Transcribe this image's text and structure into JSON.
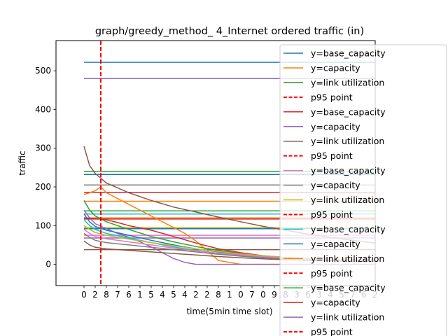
{
  "chart_data": {
    "type": "line",
    "title": "graph/greedy_method_ 4_Internet ordered traffic (in)",
    "xlabel": "time(5min time slot)",
    "ylabel": "traffic",
    "xlim": [
      -5,
      52
    ],
    "ylim": [
      -55,
      578
    ],
    "grid": false,
    "legend_position": "top-right",
    "y_ticks": [
      0,
      100,
      200,
      300,
      400,
      500
    ],
    "x_ticks": [
      0,
      2,
      4,
      6,
      8,
      10,
      12,
      14,
      16,
      18,
      20,
      22,
      24,
      26,
      28,
      30,
      32,
      34,
      36,
      38,
      40,
      42,
      44,
      46,
      48,
      50,
      52
    ],
    "x_tick_labels": [
      "0",
      "2",
      "8",
      "7",
      "6",
      "1",
      "5",
      "4",
      "5",
      "4",
      "2",
      "2",
      "8",
      "1",
      "0",
      "7",
      "0",
      "9",
      "8",
      "3",
      "6",
      "3",
      "4",
      "5",
      "7",
      "6",
      "2"
    ],
    "p95_x": 3,
    "legend": [
      {
        "label": "y=base_capacity",
        "color": "#1f77b4",
        "style": "solid"
      },
      {
        "label": "y=capacity",
        "color": "#ff7f0e",
        "style": "solid"
      },
      {
        "label": "y=link utilization",
        "color": "#2ca02c",
        "style": "solid"
      },
      {
        "label": "p95 point",
        "color": "#ff0000",
        "style": "dashed"
      },
      {
        "label": "y=base_capacity",
        "color": "#d62728",
        "style": "solid"
      },
      {
        "label": "y=capacity",
        "color": "#9467bd",
        "style": "solid"
      },
      {
        "label": "y=link utilization",
        "color": "#8c564b",
        "style": "solid"
      },
      {
        "label": "p95 point",
        "color": "#ff0000",
        "style": "dashed"
      },
      {
        "label": "y=base_capacity",
        "color": "#e377c2",
        "style": "solid"
      },
      {
        "label": "y=capacity",
        "color": "#7f7f7f",
        "style": "solid"
      },
      {
        "label": "y=link utilization",
        "color": "#bcbd22",
        "style": "solid"
      },
      {
        "label": "p95 point",
        "color": "#ff0000",
        "style": "dashed"
      },
      {
        "label": "y=base_capacity",
        "color": "#17becf",
        "style": "solid"
      },
      {
        "label": "y=capacity",
        "color": "#1f77b4",
        "style": "solid"
      },
      {
        "label": "y=link utilization",
        "color": "#ff7f0e",
        "style": "solid"
      },
      {
        "label": "p95 point",
        "color": "#ff0000",
        "style": "dashed"
      },
      {
        "label": "y=base_capacity",
        "color": "#2ca02c",
        "style": "solid"
      },
      {
        "label": "y=capacity",
        "color": "#d62728",
        "style": "solid"
      },
      {
        "label": "y=link utilization",
        "color": "#9467bd",
        "style": "solid"
      },
      {
        "label": "p95 point",
        "color": "#ff0000",
        "style": "dashed"
      }
    ],
    "series": [
      {
        "color": "#1f77b4",
        "x": [
          0,
          52
        ],
        "y": [
          522,
          522
        ]
      },
      {
        "color": "#9467bd",
        "x": [
          0,
          52
        ],
        "y": [
          480,
          480
        ]
      },
      {
        "color": "#2ca02c",
        "x": [
          0,
          52
        ],
        "y": [
          240,
          240
        ]
      },
      {
        "color": "#1f77b4",
        "x": [
          0,
          52
        ],
        "y": [
          232,
          232
        ]
      },
      {
        "color": "#7f7f7f",
        "x": [
          0,
          52
        ],
        "y": [
          205,
          205
        ]
      },
      {
        "color": "#d62728",
        "x": [
          0,
          52
        ],
        "y": [
          186,
          186
        ]
      },
      {
        "color": "#ff7f0e",
        "x": [
          0,
          52
        ],
        "y": [
          163,
          163
        ]
      },
      {
        "color": "#2ca02c",
        "x": [
          0,
          52
        ],
        "y": [
          138,
          138
        ]
      },
      {
        "color": "#17becf",
        "x": [
          0,
          52
        ],
        "y": [
          130,
          130
        ]
      },
      {
        "color": "#ff7f0e",
        "x": [
          0,
          52
        ],
        "y": [
          120,
          120
        ]
      },
      {
        "color": "#d62728",
        "x": [
          0,
          52
        ],
        "y": [
          117,
          117
        ]
      },
      {
        "color": "#bcbd22",
        "x": [
          0,
          52
        ],
        "y": [
          95,
          95
        ]
      },
      {
        "color": "#1f77b4",
        "x": [
          0,
          52
        ],
        "y": [
          92,
          92
        ]
      },
      {
        "color": "#e377c2",
        "x": [
          0,
          52
        ],
        "y": [
          75,
          75
        ]
      },
      {
        "color": "#9467bd",
        "x": [
          0,
          52
        ],
        "y": [
          68,
          68
        ]
      },
      {
        "color": "#8c564b",
        "x": [
          0,
          52
        ],
        "y": [
          38,
          38
        ]
      },
      {
        "color": "#8c564b",
        "x": [
          0,
          1,
          2,
          4,
          8,
          12,
          16,
          20,
          24,
          28,
          32,
          36,
          40,
          44,
          48,
          52
        ],
        "y": [
          305,
          255,
          235,
          210,
          185,
          165,
          148,
          135,
          122,
          110,
          98,
          88,
          78,
          70,
          62,
          55
        ]
      },
      {
        "color": "#ff7f0e",
        "x": [
          0,
          2,
          3,
          4,
          6,
          8,
          10,
          12,
          14,
          16,
          18,
          20,
          22,
          24,
          28,
          52
        ],
        "y": [
          180,
          190,
          200,
          185,
          170,
          155,
          140,
          125,
          110,
          95,
          80,
          60,
          35,
          10,
          0,
          0
        ]
      },
      {
        "color": "#9467bd",
        "x": [
          0,
          1,
          2,
          4,
          6,
          8,
          10,
          12,
          14,
          16,
          18,
          20,
          22,
          24,
          52
        ],
        "y": [
          140,
          120,
          105,
          92,
          80,
          70,
          58,
          45,
          30,
          15,
          5,
          0,
          0,
          0,
          0
        ]
      },
      {
        "color": "#2ca02c",
        "x": [
          0,
          1,
          2,
          4,
          8,
          12,
          16,
          20,
          24,
          28,
          32,
          36,
          40,
          44,
          48,
          52
        ],
        "y": [
          165,
          140,
          125,
          110,
          90,
          72,
          58,
          46,
          36,
          28,
          22,
          17,
          14,
          12,
          10,
          9
        ]
      },
      {
        "color": "#d62728",
        "x": [
          0,
          2,
          4,
          6,
          8,
          12,
          16,
          20,
          24,
          28,
          32,
          36,
          40,
          44,
          48,
          52
        ],
        "y": [
          120,
          118,
          115,
          108,
          100,
          88,
          72,
          55,
          40,
          30,
          22,
          18,
          15,
          13,
          12,
          11
        ]
      },
      {
        "color": "#1f77b4",
        "x": [
          0,
          1,
          2,
          4,
          8,
          12,
          16,
          20,
          24,
          28,
          32,
          36,
          40,
          44,
          48,
          52
        ],
        "y": [
          130,
          110,
          98,
          88,
          75,
          62,
          50,
          40,
          32,
          26,
          21,
          17,
          14,
          12,
          10,
          9
        ]
      },
      {
        "color": "#17becf",
        "x": [
          0,
          1,
          2,
          4,
          8,
          12,
          16,
          20,
          24,
          28,
          32,
          36,
          40,
          44,
          48,
          52
        ],
        "y": [
          115,
          100,
          90,
          80,
          68,
          56,
          45,
          36,
          28,
          22,
          18,
          15,
          12,
          10,
          9,
          8
        ]
      },
      {
        "color": "#bcbd22",
        "x": [
          0,
          1,
          2,
          4,
          8,
          12,
          16,
          20,
          24,
          28,
          32,
          36,
          40,
          44,
          48,
          52
        ],
        "y": [
          100,
          90,
          82,
          75,
          65,
          56,
          48,
          40,
          33,
          27,
          22,
          18,
          15,
          13,
          11,
          10
        ]
      },
      {
        "color": "#e377c2",
        "x": [
          0,
          1,
          2,
          4,
          8,
          12,
          16,
          20,
          24,
          28,
          32,
          36,
          40,
          44,
          48,
          52
        ],
        "y": [
          90,
          80,
          72,
          66,
          58,
          50,
          42,
          35,
          29,
          24,
          20,
          16,
          13,
          11,
          10,
          9
        ]
      },
      {
        "color": "#7f7f7f",
        "x": [
          0,
          1,
          2,
          4,
          8,
          12,
          16,
          20,
          24,
          28,
          32,
          36,
          40,
          44,
          48,
          52
        ],
        "y": [
          80,
          70,
          62,
          56,
          50,
          44,
          38,
          32,
          26,
          21,
          17,
          14,
          12,
          10,
          9,
          8
        ]
      },
      {
        "color": "#8c564b",
        "x": [
          0,
          1,
          2,
          4,
          8,
          12,
          16,
          20,
          24,
          28,
          32,
          36,
          40,
          44,
          48,
          52
        ],
        "y": [
          60,
          50,
          44,
          40,
          36,
          32,
          28,
          24,
          20,
          17,
          14,
          12,
          10,
          9,
          8,
          7
        ]
      }
    ]
  }
}
